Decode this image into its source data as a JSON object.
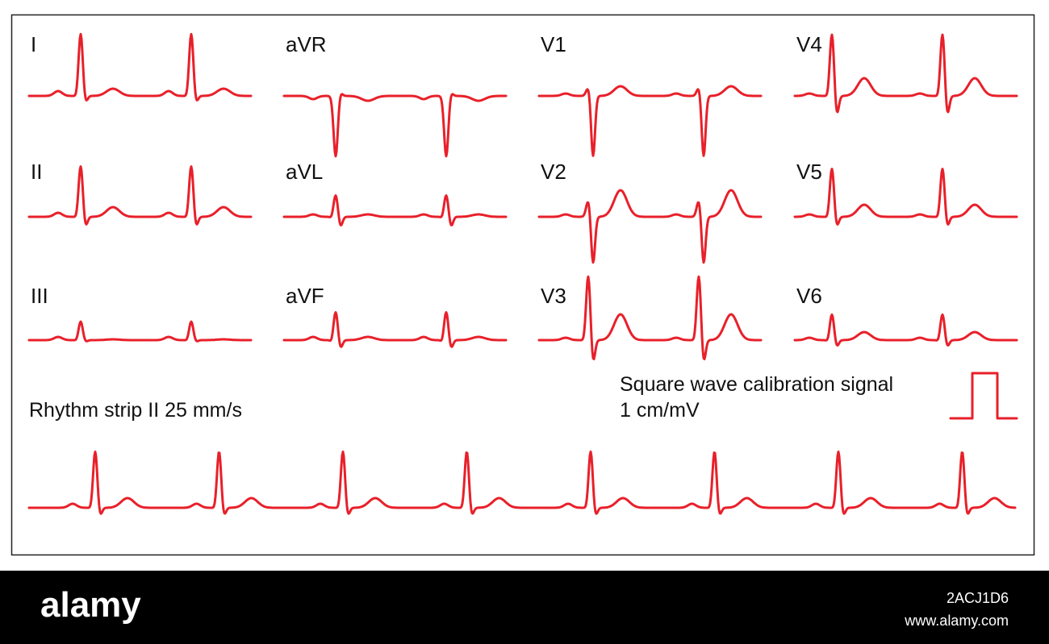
{
  "leads": [
    {
      "label": "I"
    },
    {
      "label": "II"
    },
    {
      "label": "III"
    },
    {
      "label": "aVR"
    },
    {
      "label": "aVL"
    },
    {
      "label": "aVF"
    },
    {
      "label": "V1"
    },
    {
      "label": "V2"
    },
    {
      "label": "V3"
    },
    {
      "label": "V4"
    },
    {
      "label": "V5"
    },
    {
      "label": "V6"
    }
  ],
  "rhythm_label": "Rhythm strip II 25 mm/s",
  "calibration": {
    "line1": "Square wave calibration signal",
    "line2": "1 cm/mV"
  },
  "footer": {
    "logo": "alamy",
    "image_id": "2ACJ1D6",
    "url": "www.alamy.com"
  }
}
